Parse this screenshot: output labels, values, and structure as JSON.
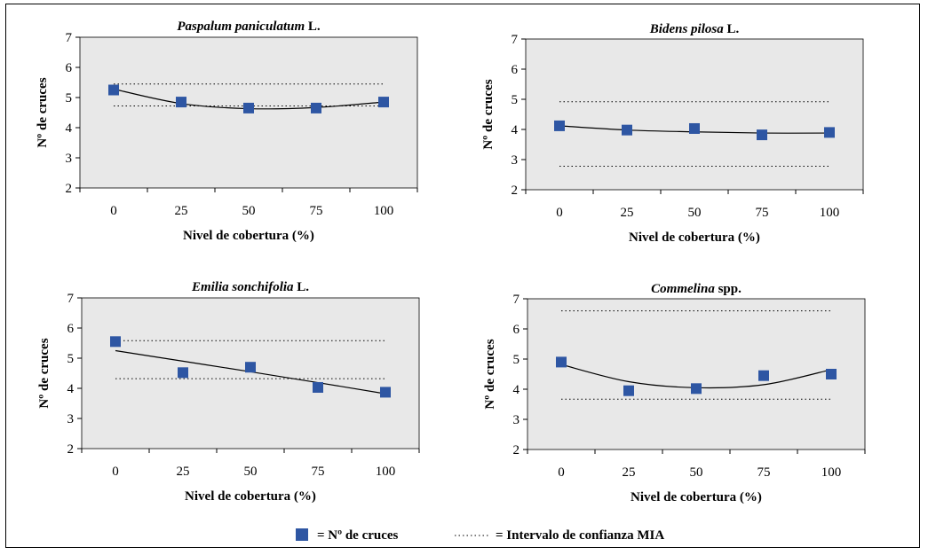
{
  "legend": {
    "marker_label": "= Nº de cruces",
    "dotted_label": "= Intervalo de confianza MIA",
    "marker_color": "#2e56a3"
  },
  "colors": {
    "plot_bg": "#e8e8e8",
    "marker": "#2e56a3",
    "line": "#000000"
  },
  "chart_data": [
    {
      "type": "scatter",
      "title_italic": "Paspalum paniculatum",
      "title_rest": " L.",
      "xlabel": "Nivel de cobertura (%)",
      "ylabel": "Nº de cruces",
      "categories": [
        "0",
        "25",
        "50",
        "75",
        "100"
      ],
      "ylim": [
        2,
        7
      ],
      "yticks": [
        2,
        3,
        4,
        5,
        6,
        7
      ],
      "values": [
        5.25,
        4.85,
        4.65,
        4.65,
        4.85
      ],
      "trend": [
        5.28,
        4.8,
        4.63,
        4.67,
        4.85
      ],
      "ci_upper": 5.45,
      "ci_lower": 4.72
    },
    {
      "type": "scatter",
      "title_italic": "Bidens pilosa",
      "title_rest": " L.",
      "xlabel": "Nivel de cobertura (%)",
      "ylabel": "Nº de cruces",
      "categories": [
        "0",
        "25",
        "50",
        "75",
        "100"
      ],
      "ylim": [
        2,
        7
      ],
      "yticks": [
        2,
        3,
        4,
        5,
        6,
        7
      ],
      "values": [
        4.12,
        3.98,
        4.03,
        3.82,
        3.9
      ],
      "trend": [
        4.12,
        3.98,
        3.92,
        3.88,
        3.88
      ],
      "ci_upper": 4.92,
      "ci_lower": 2.78
    },
    {
      "type": "scatter",
      "title_italic": "Emilia sonchifolia",
      "title_rest": " L.",
      "xlabel": "Nivel de cobertura (%)",
      "ylabel": "Nº de cruces",
      "categories": [
        "0",
        "25",
        "50",
        "75",
        "100"
      ],
      "ylim": [
        2,
        7
      ],
      "yticks": [
        2,
        3,
        4,
        5,
        6,
        7
      ],
      "values": [
        5.55,
        4.52,
        4.7,
        4.03,
        3.87
      ],
      "trend": [
        5.25,
        4.9,
        4.55,
        4.19,
        3.82
      ],
      "ci_upper": 5.58,
      "ci_lower": 4.32
    },
    {
      "type": "scatter",
      "title_italic": "Commelina",
      "title_rest": " spp.",
      "xlabel": "Nivel de cobertura (%)",
      "ylabel": "Nº de cruces",
      "categories": [
        "0",
        "25",
        "50",
        "75",
        "100"
      ],
      "ylim": [
        2,
        7
      ],
      "yticks": [
        2,
        3,
        4,
        5,
        6,
        7
      ],
      "values": [
        4.9,
        3.95,
        4.02,
        4.45,
        4.5
      ],
      "trend": [
        4.82,
        4.25,
        4.05,
        4.15,
        4.65
      ],
      "ci_upper": 6.6,
      "ci_lower": 3.67
    }
  ]
}
